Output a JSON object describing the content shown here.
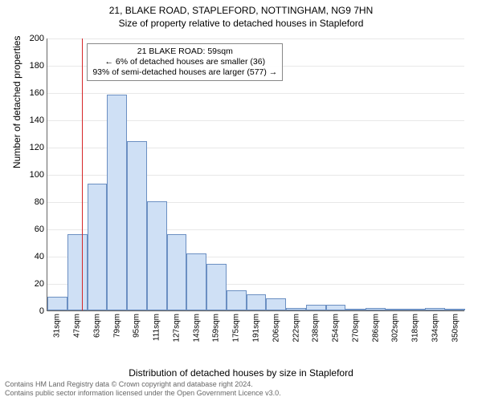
{
  "titles": {
    "line1": "21, BLAKE ROAD, STAPLEFORD, NOTTINGHAM, NG9 7HN",
    "line2": "Size of property relative to detached houses in Stapleford"
  },
  "axes": {
    "ylabel": "Number of detached properties",
    "xlabel": "Distribution of detached houses by size in Stapleford",
    "ylim": [
      0,
      200
    ],
    "ytick_step": 20,
    "grid_color": "#e8e8e8",
    "axis_color": "#666666"
  },
  "callout": {
    "line1": "21 BLAKE ROAD: 59sqm",
    "line2": "← 6% of detached houses are smaller (36)",
    "line3": "93% of semi-detached houses are larger (577) →",
    "border_color": "#888888"
  },
  "marker": {
    "x_sqm": 59,
    "color": "#d62728"
  },
  "histogram": {
    "type": "histogram",
    "bar_fill": "#cfe0f5",
    "bar_stroke": "#6b8fc2",
    "bar_width_ratio": 1.0,
    "x_start": 31,
    "x_step": 16,
    "bins": [
      {
        "label": "31sqm",
        "value": 10
      },
      {
        "label": "47sqm",
        "value": 56
      },
      {
        "label": "63sqm",
        "value": 93
      },
      {
        "label": "79sqm",
        "value": 158
      },
      {
        "label": "95sqm",
        "value": 124
      },
      {
        "label": "111sqm",
        "value": 80
      },
      {
        "label": "127sqm",
        "value": 56
      },
      {
        "label": "143sqm",
        "value": 42
      },
      {
        "label": "159sqm",
        "value": 34
      },
      {
        "label": "175sqm",
        "value": 15
      },
      {
        "label": "191sqm",
        "value": 12
      },
      {
        "label": "206sqm",
        "value": 9
      },
      {
        "label": "222sqm",
        "value": 2
      },
      {
        "label": "238sqm",
        "value": 4
      },
      {
        "label": "254sqm",
        "value": 4
      },
      {
        "label": "270sqm",
        "value": 0
      },
      {
        "label": "286sqm",
        "value": 2
      },
      {
        "label": "302sqm",
        "value": 0
      },
      {
        "label": "318sqm",
        "value": 0
      },
      {
        "label": "334sqm",
        "value": 2
      },
      {
        "label": "350sqm",
        "value": 0
      }
    ]
  },
  "footer": {
    "line1": "Contains HM Land Registry data © Crown copyright and database right 2024.",
    "line2": "Contains public sector information licensed under the Open Government Licence v3.0."
  },
  "colors": {
    "background": "#ffffff",
    "text": "#000000",
    "footer_text": "#666666"
  },
  "fonts": {
    "title_pt": 12,
    "axis_label_pt": 12,
    "tick_pt": 10,
    "callout_pt": 10.5,
    "footer_pt": 9
  }
}
